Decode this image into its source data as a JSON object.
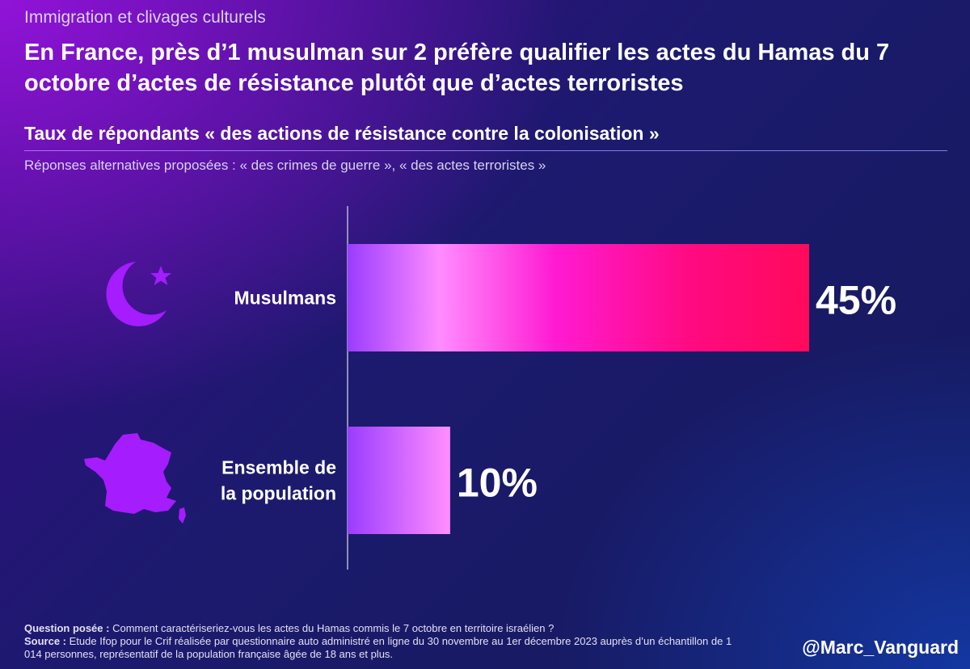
{
  "header": {
    "kicker": "Immigration et clivages culturels",
    "title": "En France, près d’1 musulman sur 2 préfère qualifier les actes du Hamas du 7 octobre d’actes de résistance plutôt que d’actes terroristes",
    "subtitle": "Taux de répondants « des actions de résistance contre la colonisation »",
    "note": "Réponses alternatives proposées : « des crimes de guerre », « des actes terroristes »"
  },
  "chart_data": {
    "type": "bar",
    "orientation": "horizontal",
    "categories": [
      "Musulmans",
      "Ensemble de la population"
    ],
    "category_lines": [
      [
        "Musulmans"
      ],
      [
        "Ensemble de",
        "la population"
      ]
    ],
    "values": [
      45,
      10
    ],
    "value_labels": [
      "45%",
      "10%"
    ],
    "category_icons": [
      "crescent-star-icon",
      "france-map-icon"
    ],
    "xlim": [
      0,
      50
    ],
    "grid": false,
    "colors": {
      "gradient_start": "#9a3cff",
      "gradient_mid": "#ff8cff",
      "gradient_hot": "#ff1aa8",
      "gradient_end": "#ff0a5a",
      "icon": "#a51cff",
      "axis": "#b8b4d8"
    }
  },
  "footer": {
    "question_label": "Question posée :",
    "question_text": "Comment caractériseriez-vous les actes du Hamas commis le 7 octobre en territoire israélien ?",
    "source_label": "Source :",
    "source_text": "Etude Ifop pour le Crif réalisée par questionnaire auto administré en ligne du 30 novembre au 1er décembre 2023 auprès d’un échantillon de 1 014 personnes, représentatif de la population française âgée de 18 ans et plus."
  },
  "handle": "@Marc_Vanguard"
}
